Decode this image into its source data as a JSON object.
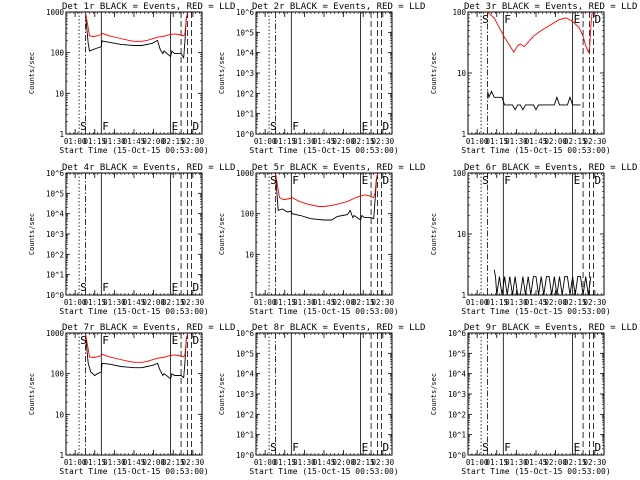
{
  "colors": {
    "events": "#000000",
    "lld": "#ff0000",
    "background": "#ffffff"
  },
  "x_label": "Start Time (15-Oct-15 00:53:00)",
  "y_label": "Counts/sec",
  "x_ticks": [
    "01:00",
    "01:15",
    "01:30",
    "01:45",
    "02:00",
    "02:15",
    "02:30"
  ],
  "x_tick_minutes": [
    7,
    22,
    37,
    52,
    67,
    82,
    97
  ],
  "x_range_minutes": [
    0,
    104
  ],
  "markers": [
    {
      "label": "S",
      "minute": 10,
      "style": "dotted"
    },
    {
      "label": "",
      "minute": 15,
      "style": "dashdot"
    },
    {
      "label": "F",
      "minute": 27,
      "style": "solid"
    },
    {
      "label": "E",
      "minute": 80,
      "style": "solid"
    },
    {
      "label": "",
      "minute": 88,
      "style": "dashed"
    },
    {
      "label": "",
      "minute": 93,
      "style": "dashed"
    },
    {
      "label": "D",
      "minute": 96,
      "style": "dashed"
    }
  ],
  "chart_data": [
    {
      "type": "line",
      "title": "Det 1r BLACK = Events, RED = LLD",
      "ylim": [
        1,
        1000
      ],
      "y_ticks": [
        {
          "v": 1,
          "t": "1"
        },
        {
          "v": 10,
          "t": "10"
        },
        {
          "v": 100,
          "t": "100"
        },
        {
          "v": 1000,
          "t": "1000"
        }
      ],
      "marker_labels": "low",
      "series": [
        {
          "name": "Events",
          "color": "#000000",
          "x": [
            15,
            17,
            18,
            21,
            24,
            27,
            27.5,
            33,
            42,
            52,
            58,
            66,
            70,
            72,
            74,
            75,
            80,
            81,
            83,
            88,
            90,
            91,
            92,
            93
          ],
          "y": [
            800,
            170,
            110,
            120,
            130,
            140,
            195,
            180,
            160,
            150,
            150,
            170,
            200,
            120,
            95,
            110,
            80,
            110,
            95,
            95,
            75,
            200,
            700,
            900
          ]
        },
        {
          "name": "LLD",
          "color": "#ff0000",
          "x": [
            15,
            18,
            21,
            24,
            27,
            27.5,
            33,
            40,
            48,
            52,
            58,
            62,
            70,
            74,
            78,
            80,
            83,
            86,
            88,
            90,
            91,
            92,
            93
          ],
          "y": [
            950,
            260,
            250,
            260,
            280,
            300,
            260,
            230,
            200,
            190,
            190,
            200,
            240,
            250,
            270,
            280,
            290,
            280,
            270,
            260,
            300,
            700,
            950
          ]
        }
      ]
    },
    {
      "type": "line",
      "title": "Det 2r BLACK = Events, RED = LLD",
      "ylim": [
        1,
        1000000
      ],
      "y_ticks": [
        {
          "v": 1,
          "t": "10^0"
        },
        {
          "v": 10,
          "t": "10^1"
        },
        {
          "v": 100,
          "t": "10^2"
        },
        {
          "v": 1000,
          "t": "10^3"
        },
        {
          "v": 10000,
          "t": "10^4"
        },
        {
          "v": 100000,
          "t": "10^5"
        },
        {
          "v": 1000000,
          "t": "10^6"
        }
      ],
      "marker_labels": "low",
      "series": []
    },
    {
      "type": "line",
      "title": "Det 3r BLACK = Events, RED = LLD",
      "ylim": [
        1,
        100
      ],
      "y_ticks": [
        {
          "v": 1,
          "t": "1"
        },
        {
          "v": 10,
          "t": "10"
        },
        {
          "v": 100,
          "t": "100"
        }
      ],
      "marker_labels": "high",
      "series": [
        {
          "name": "Events",
          "color": "#000000",
          "x": [
            15,
            15.5,
            16,
            18,
            20,
            22,
            24,
            26,
            28,
            30,
            32,
            34,
            36,
            38,
            40,
            42,
            44,
            46,
            48,
            50,
            52,
            54,
            56,
            58,
            60,
            62,
            64,
            66,
            68,
            70,
            72,
            74,
            76,
            78,
            80,
            82,
            84,
            86
          ],
          "y": [
            5,
            4.5,
            4,
            5,
            4,
            4,
            4,
            4,
            3,
            3,
            3,
            3,
            2.5,
            3,
            3,
            2.5,
            3,
            3,
            3,
            3,
            2.5,
            3,
            3,
            3,
            3,
            3,
            3,
            3,
            4,
            3,
            3,
            3,
            3,
            4,
            3,
            3,
            3,
            3
          ]
        },
        {
          "name": "LLD",
          "color": "#ff0000",
          "x": [
            15,
            20,
            24,
            28,
            32,
            35,
            38,
            40,
            43,
            46,
            50,
            55,
            60,
            65,
            70,
            75,
            80,
            85,
            88,
            90,
            92,
            93,
            94,
            95
          ],
          "y": [
            100,
            80,
            55,
            38,
            28,
            22,
            28,
            30,
            27,
            32,
            40,
            48,
            56,
            65,
            75,
            80,
            70,
            55,
            40,
            28,
            22,
            25,
            60,
            100
          ]
        }
      ]
    },
    {
      "type": "line",
      "title": "Det 4r BLACK = Events, RED = LLD",
      "ylim": [
        1,
        1000000
      ],
      "y_ticks": [
        {
          "v": 1,
          "t": "10^0"
        },
        {
          "v": 10,
          "t": "10^1"
        },
        {
          "v": 100,
          "t": "10^2"
        },
        {
          "v": 1000,
          "t": "10^3"
        },
        {
          "v": 10000,
          "t": "10^4"
        },
        {
          "v": 100000,
          "t": "10^5"
        },
        {
          "v": 1000000,
          "t": "10^6"
        }
      ],
      "marker_labels": "low",
      "series": []
    },
    {
      "type": "line",
      "title": "Det 5r BLACK = Events, RED = LLD",
      "ylim": [
        1,
        1000
      ],
      "y_ticks": [
        {
          "v": 1,
          "t": "1"
        },
        {
          "v": 10,
          "t": "10"
        },
        {
          "v": 100,
          "t": "100"
        },
        {
          "v": 1000,
          "t": "1000"
        }
      ],
      "marker_labels": "high",
      "series": [
        {
          "name": "Events",
          "color": "#000000",
          "x": [
            15,
            17,
            20,
            24,
            27,
            27.5,
            34,
            42,
            52,
            58,
            62,
            66,
            70,
            72,
            74,
            75,
            80,
            81,
            83,
            88,
            90,
            91,
            92,
            93
          ],
          "y": [
            900,
            120,
            130,
            110,
            115,
            100,
            90,
            75,
            70,
            70,
            85,
            90,
            95,
            120,
            80,
            90,
            70,
            90,
            80,
            80,
            75,
            200,
            600,
            900
          ]
        },
        {
          "name": "LLD",
          "color": "#ff0000",
          "x": [
            15,
            18,
            21,
            24,
            27,
            27.5,
            33,
            40,
            48,
            52,
            58,
            62,
            70,
            74,
            78,
            80,
            83,
            86,
            88,
            90,
            91,
            92,
            93
          ],
          "y": [
            950,
            250,
            220,
            230,
            240,
            250,
            200,
            170,
            150,
            150,
            160,
            170,
            200,
            230,
            260,
            270,
            290,
            280,
            260,
            250,
            320,
            700,
            950
          ]
        }
      ]
    },
    {
      "type": "line",
      "title": "Det 6r BLACK = Events, RED = LLD",
      "ylim": [
        1,
        100
      ],
      "y_ticks": [
        {
          "v": 1,
          "t": "1"
        },
        {
          "v": 10,
          "t": "10"
        },
        {
          "v": 100,
          "t": "100"
        }
      ],
      "marker_labels": "high",
      "series": [
        {
          "name": "Events",
          "color": "#000000",
          "x": [
            20,
            21,
            22,
            24,
            26,
            28,
            30,
            32,
            34,
            36,
            38,
            40,
            42,
            44,
            46,
            48,
            50,
            52,
            54,
            56,
            58,
            60,
            62,
            64,
            66,
            68,
            70,
            72,
            74,
            76,
            78,
            80,
            82,
            84,
            86,
            88,
            90,
            92,
            94
          ],
          "y": [
            2.6,
            2,
            1,
            2,
            1,
            2,
            1,
            2,
            1,
            2,
            1,
            1,
            2,
            1,
            2,
            1,
            2,
            2,
            1,
            2,
            1,
            2,
            2,
            1,
            2,
            1,
            2,
            1,
            2,
            2,
            1,
            2,
            1,
            2,
            2,
            1,
            2,
            1,
            2
          ]
        }
      ]
    },
    {
      "type": "line",
      "title": "Det 7r BLACK = Events, RED = LLD",
      "ylim": [
        1,
        1000
      ],
      "y_ticks": [
        {
          "v": 1,
          "t": "1"
        },
        {
          "v": 10,
          "t": "10"
        },
        {
          "v": 100,
          "t": "100"
        },
        {
          "v": 1000,
          "t": "1000"
        }
      ],
      "marker_labels": "high",
      "series": [
        {
          "name": "Events",
          "color": "#000000",
          "x": [
            15,
            17,
            19,
            22,
            24,
            27,
            27.5,
            34,
            42,
            52,
            58,
            62,
            66,
            70,
            72,
            74,
            75,
            80,
            81,
            83,
            88,
            90,
            91,
            92,
            93
          ],
          "y": [
            850,
            180,
            110,
            90,
            100,
            110,
            180,
            170,
            150,
            140,
            140,
            150,
            160,
            180,
            120,
            90,
            100,
            75,
            100,
            90,
            90,
            80,
            200,
            700,
            900
          ]
        },
        {
          "name": "LLD",
          "color": "#ff0000",
          "x": [
            15,
            18,
            21,
            24,
            27,
            27.5,
            33,
            40,
            48,
            52,
            58,
            62,
            70,
            74,
            78,
            80,
            83,
            86,
            88,
            90,
            91,
            92,
            93
          ],
          "y": [
            950,
            260,
            250,
            260,
            280,
            300,
            260,
            230,
            200,
            190,
            190,
            200,
            240,
            250,
            270,
            280,
            290,
            280,
            270,
            260,
            300,
            700,
            950
          ]
        }
      ]
    },
    {
      "type": "line",
      "title": "Det 8r BLACK = Events, RED = LLD",
      "ylim": [
        1,
        1000000
      ],
      "y_ticks": [
        {
          "v": 1,
          "t": "10^0"
        },
        {
          "v": 10,
          "t": "10^1"
        },
        {
          "v": 100,
          "t": "10^2"
        },
        {
          "v": 1000,
          "t": "10^3"
        },
        {
          "v": 10000,
          "t": "10^4"
        },
        {
          "v": 100000,
          "t": "10^5"
        },
        {
          "v": 1000000,
          "t": "10^6"
        }
      ],
      "marker_labels": "low",
      "series": []
    },
    {
      "type": "line",
      "title": "Det 9r BLACK = Events, RED = LLD",
      "ylim": [
        1,
        1000000
      ],
      "y_ticks": [
        {
          "v": 1,
          "t": "10^0"
        },
        {
          "v": 10,
          "t": "10^1"
        },
        {
          "v": 100,
          "t": "10^2"
        },
        {
          "v": 1000,
          "t": "10^3"
        },
        {
          "v": 10000,
          "t": "10^4"
        },
        {
          "v": 100000,
          "t": "10^5"
        },
        {
          "v": 1000000,
          "t": "10^6"
        }
      ],
      "marker_labels": "low",
      "series": []
    }
  ]
}
